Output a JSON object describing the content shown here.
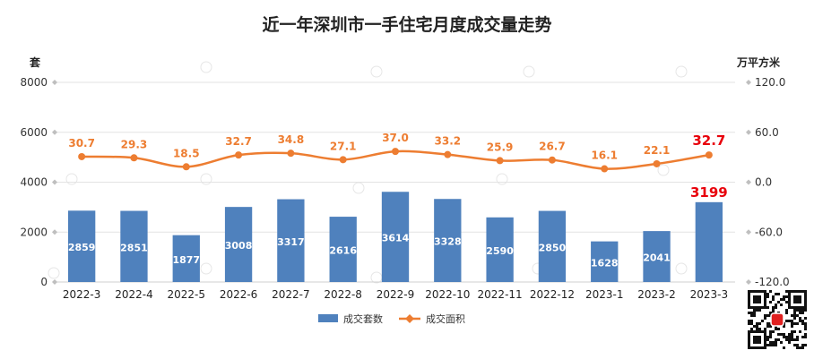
{
  "chart_data": {
    "type": "bar",
    "title": "近一年深圳市一手住宅月度成交量走势",
    "y_left_unit": "套",
    "y_right_unit": "万平方米",
    "categories": [
      "2022-3",
      "2022-4",
      "2022-5",
      "2022-6",
      "2022-7",
      "2022-8",
      "2022-9",
      "2022-10",
      "2022-11",
      "2022-12",
      "2023-1",
      "2023-2",
      "2023-3"
    ],
    "y_left": {
      "min": 0,
      "max": 8000,
      "ticks": [
        "0",
        "2000",
        "4000",
        "6000",
        "8000"
      ]
    },
    "y_right": {
      "min": -120,
      "max": 120,
      "ticks": [
        "-120.0",
        "-60.0",
        "0.0",
        "60.0",
        "120.0"
      ]
    },
    "grid": true,
    "legend_position": "bottom",
    "series": [
      {
        "name": "成交套数",
        "type": "bar",
        "axis": "left",
        "color": "#4F81BD",
        "values": [
          2859,
          2851,
          1877,
          3008,
          3317,
          2616,
          3614,
          3328,
          2590,
          2850,
          1628,
          2041,
          3199
        ],
        "labels": [
          "2859",
          "2851",
          "1877",
          "3008",
          "3317",
          "2616",
          "3614",
          "3328",
          "2590",
          "2850",
          "1628",
          "2041",
          "3199"
        ]
      },
      {
        "name": "成交面积",
        "type": "line",
        "axis": "right",
        "color": "#ED7D31",
        "values": [
          30.7,
          29.3,
          18.5,
          32.7,
          34.8,
          27.1,
          37.0,
          33.2,
          25.9,
          26.7,
          16.1,
          22.1,
          32.7
        ],
        "labels": [
          "30.7",
          "29.3",
          "18.5",
          "32.7",
          "34.8",
          "27.1",
          "37.0",
          "33.2",
          "25.9",
          "26.7",
          "16.1",
          "22.1",
          "32.7"
        ]
      }
    ],
    "highlight_color": "#E8000B"
  }
}
